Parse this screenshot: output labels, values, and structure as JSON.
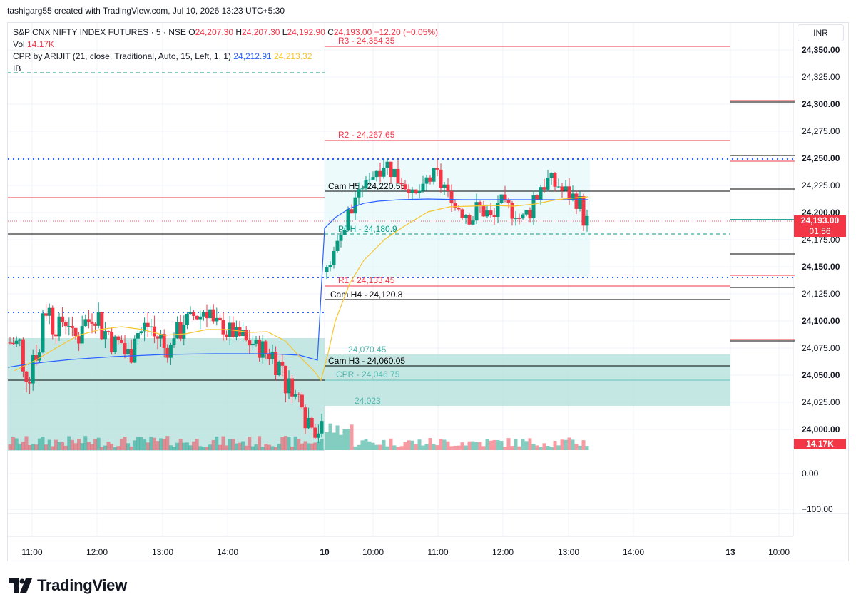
{
  "credit": "tashigarg55 created with TradingView.com, Jul 10, 2026 13:23 UTC+5:30",
  "legend": {
    "symbol": "S&P CNX NIFTY INDEX FUTURES · 5 · NSE",
    "o_label": "O",
    "o": "24,207.30",
    "h_label": "H",
    "h": "24,207.30",
    "l_label": "L",
    "l": "24,192.90",
    "c_label": "C",
    "c": "24,193.00",
    "chg": "−12.20 (−0.05%)",
    "vol_label": "Vol",
    "vol": "14.17K",
    "cpr_label": "CPR by ARIJIT (21, close, Traditional, Auto, 15, Left, 1, 1)",
    "cpr_v1": "24,212.91",
    "cpr_v2": "24,213.32",
    "ib_label": "IB"
  },
  "currency": "INR",
  "last_price": "24,193.00",
  "countdown": "01:56",
  "vol_tag": "14.17K",
  "brand": "TradingView",
  "colors": {
    "up": "#089981",
    "down": "#f23645",
    "vwap": "#2962ff",
    "ema": "#f7c530",
    "cpr_zone": "#b2dfdb",
    "ib_zone": "#e0f7fa"
  },
  "chart_data": {
    "type": "candlestick",
    "y_ticks": [
      "24,350.00",
      "24,325.00",
      "24,300.00",
      "24,275.00",
      "24,250.00",
      "24,225.00",
      "24,200.00",
      "24,175.00",
      "24,150.00",
      "24,125.00",
      "24,100.00",
      "24,075.00",
      "24,050.00",
      "24,025.00",
      "24,000.00"
    ],
    "vol_ticks": [
      "0.00",
      "−100.00"
    ],
    "x_ticks": [
      "11:00",
      "12:00",
      "13:00",
      "14:00",
      "10",
      "10:00",
      "11:00",
      "12:00",
      "13:00",
      "14:00",
      "13",
      "10:00"
    ],
    "levels": [
      {
        "label": "R3 - 24,354.35",
        "price": 24354.35,
        "color": "#f23645"
      },
      {
        "label": "R2 - 24,267.65",
        "price": 24267.65,
        "color": "#f23645"
      },
      {
        "label": "Cam H5 - 24,220.55",
        "price": 24220.55,
        "color": "#000000"
      },
      {
        "label": "PDH - 24,180.9",
        "price": 24180.9,
        "color": "#089981"
      },
      {
        "label": "R1 - 24,133.45",
        "price": 24133.45,
        "color": "#f23645"
      },
      {
        "label": "Cam H4 - 24,120.8",
        "price": 24120.8,
        "color": "#000000"
      },
      {
        "label": "24,070.45",
        "price": 24070.45,
        "color": "#26a69a"
      },
      {
        "label": "Cam H3 - 24,060.05",
        "price": 24060.05,
        "color": "#000000"
      },
      {
        "label": "CPR - 24,046.75",
        "price": 24046.75,
        "color": "#26a69a"
      },
      {
        "label": "24,023",
        "price": 24023,
        "color": "#26a69a"
      }
    ],
    "prev_day_close_approx": 24140,
    "session": {
      "open": 24145,
      "high": 24251,
      "low": 24132,
      "last": 24193.0
    },
    "ib_range": {
      "high": 24250,
      "low": 24141
    }
  }
}
